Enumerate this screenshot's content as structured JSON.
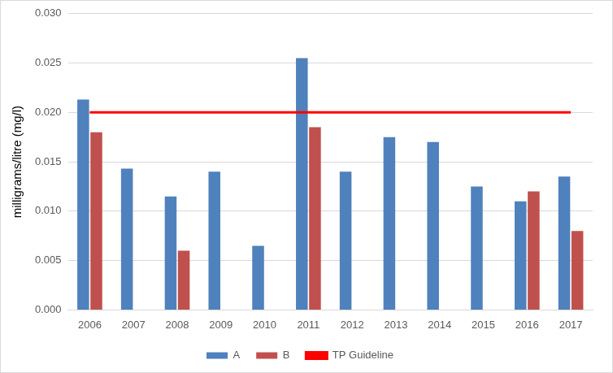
{
  "chart_data": {
    "type": "bar",
    "y_label": "milligrams/litre (mg/l)",
    "categories": [
      "2006",
      "2007",
      "2008",
      "2009",
      "2010",
      "2011",
      "2012",
      "2013",
      "2014",
      "2015",
      "2016",
      "2017"
    ],
    "series": [
      {
        "name": "A",
        "color": "#4f81bd",
        "values": [
          0.0213,
          0.0143,
          0.0115,
          0.014,
          0.0065,
          0.0255,
          0.014,
          0.0175,
          0.017,
          0.0125,
          0.011,
          0.0135
        ]
      },
      {
        "name": "B",
        "color": "#c0504d",
        "values": [
          0.018,
          null,
          0.006,
          null,
          null,
          0.0185,
          null,
          null,
          null,
          null,
          0.012,
          0.008
        ]
      },
      {
        "name": "TP Guideline",
        "color": "#ff0000",
        "type": "line",
        "line_style": "solid",
        "marker": "none",
        "values": [
          0.02,
          0.02,
          0.02,
          0.02,
          0.02,
          0.02,
          0.02,
          0.02,
          0.02,
          0.02,
          0.02,
          0.02
        ]
      }
    ],
    "ylim": [
      0,
      0.03
    ],
    "yticks": [
      {
        "value": 0,
        "label": "0.000"
      },
      {
        "value": 0.005,
        "label": "0.005"
      },
      {
        "value": 0.01,
        "label": "0.010"
      },
      {
        "value": 0.015,
        "label": "0.015"
      },
      {
        "value": 0.02,
        "label": "0.020"
      },
      {
        "value": 0.025,
        "label": "0.025"
      },
      {
        "value": 0.03,
        "label": "0.030"
      }
    ],
    "grid": true,
    "legend": "bottom"
  }
}
